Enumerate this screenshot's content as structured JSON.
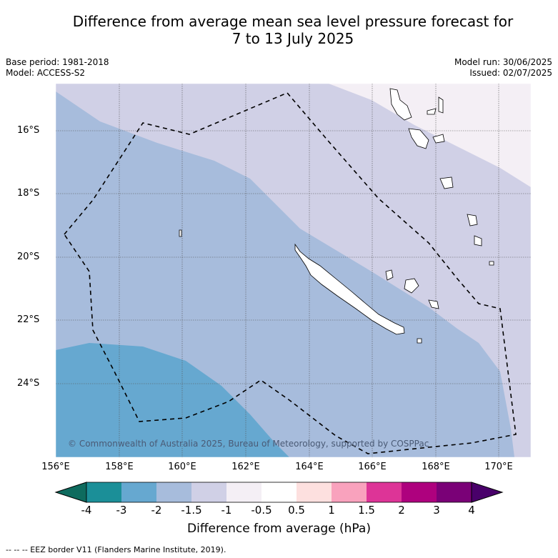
{
  "header": {
    "title_line1": "Difference from average mean sea level pressure forecast for",
    "title_line2": "7 to 13 July 2025",
    "base_period": "Base period: 1981-2018",
    "model": "Model: ACCESS-S2",
    "model_run": "Model run: 30/06/2025",
    "issued": "Issued: 02/07/2025"
  },
  "map": {
    "lat_labels": [
      "16°S",
      "18°S",
      "20°S",
      "22°S",
      "24°S"
    ],
    "lon_labels": [
      "156°E",
      "158°E",
      "160°E",
      "162°E",
      "164°E",
      "166°E",
      "168°E",
      "170°E"
    ],
    "copyright": "© Commonwealth of Australia 2025, Bureau of Meteorology, supported by COSPPac",
    "colors": {
      "band_m2_m1_5": "#a7bcdc",
      "band_m1_5_m1": "#d0d0e6",
      "band_m1_m0_5": "#f4eff5",
      "band_m3_m2": "#66a8d0"
    }
  },
  "colorbar": {
    "title": "Difference from average (hPa)",
    "ticks": [
      "-4",
      "-3",
      "-2",
      "-1.5",
      "-1",
      "-0.5",
      "0.5",
      "1",
      "1.5",
      "2",
      "3",
      "4"
    ],
    "colors": [
      "#1b8f98",
      "#66a8d0",
      "#a7bcdc",
      "#d0d0e6",
      "#f4eff5",
      "#ffffff",
      "#fde0df",
      "#f9a2bd",
      "#dd3497",
      "#ae017e",
      "#7a0177"
    ],
    "low_extend_color": "#0e6b5e",
    "high_extend_color": "#49006a"
  },
  "footnote": "-- -- -- EEZ border V11 (Flanders Marine Institute, 2019)."
}
